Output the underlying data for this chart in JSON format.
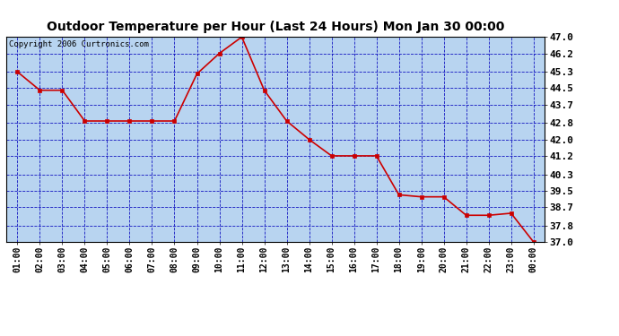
{
  "title": "Outdoor Temperature per Hour (Last 24 Hours) Mon Jan 30 00:00",
  "copyright": "Copyright 2006 Curtronics.com",
  "x_labels": [
    "01:00",
    "02:00",
    "03:00",
    "04:00",
    "05:00",
    "06:00",
    "07:00",
    "08:00",
    "09:00",
    "10:00",
    "11:00",
    "12:00",
    "13:00",
    "14:00",
    "15:00",
    "16:00",
    "17:00",
    "18:00",
    "19:00",
    "20:00",
    "21:00",
    "22:00",
    "23:00",
    "00:00"
  ],
  "y_values": [
    45.3,
    44.4,
    44.4,
    42.9,
    42.9,
    42.9,
    42.9,
    42.9,
    45.2,
    46.2,
    47.0,
    44.4,
    42.9,
    42.0,
    41.2,
    41.2,
    41.2,
    39.3,
    39.2,
    39.2,
    38.3,
    38.3,
    38.4,
    37.0
  ],
  "line_color": "#cc0000",
  "marker_color": "#cc0000",
  "plot_bg_color": "#b8d4f0",
  "outer_bg_color": "#ffffff",
  "grid_color": "#0000bb",
  "y_min": 37.0,
  "y_max": 47.0,
  "y_ticks": [
    37.0,
    37.8,
    38.7,
    39.5,
    40.3,
    41.2,
    42.0,
    42.8,
    43.7,
    44.5,
    45.3,
    46.2,
    47.0
  ]
}
